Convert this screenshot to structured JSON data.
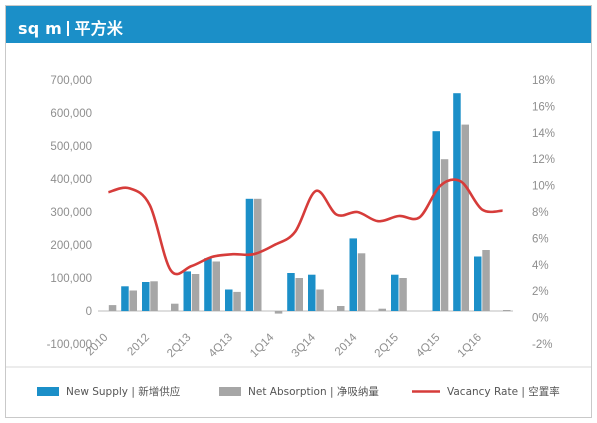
{
  "header": {
    "unit_en": "sq m",
    "unit_cn": "平方米"
  },
  "colors": {
    "header": "#1b8fc8",
    "supply": "#1b8fc8",
    "absorption": "#a6a6a6",
    "vacancy": "#d63c3a"
  },
  "legend": {
    "supply": "New Supply | 新增供应",
    "absorption": "Net Absorption | 净吸纳量",
    "vacancy": "Vacancy Rate | 空置率"
  },
  "chart_data": {
    "type": "bar",
    "categories": [
      "2010",
      "",
      "2012",
      "",
      "2Q13",
      "",
      "4Q13",
      "",
      "1Q14",
      "",
      "3Q14",
      "",
      "2014",
      "",
      "2Q15",
      "",
      "4Q15",
      "",
      "1Q16",
      ""
    ],
    "x_tick_labels": [
      "2010",
      "2012",
      "2Q13",
      "4Q13",
      "1Q14",
      "3Q14",
      "2014",
      "2Q15",
      "4Q15",
      "1Q16"
    ],
    "series": [
      {
        "name": "New Supply | 新增供应",
        "axis": "left",
        "type": "bar",
        "values": [
          0,
          75000,
          88000,
          0,
          120000,
          160000,
          65000,
          340000,
          0,
          115000,
          110000,
          0,
          220000,
          0,
          110000,
          0,
          545000,
          660000,
          165000,
          0
        ]
      },
      {
        "name": "Net Absorption | 净吸纳量",
        "axis": "left",
        "type": "bar",
        "values": [
          18000,
          62000,
          90000,
          22000,
          112000,
          150000,
          58000,
          340000,
          -8000,
          100000,
          65000,
          15000,
          175000,
          7000,
          100000,
          0,
          460000,
          565000,
          185000,
          3000
        ]
      },
      {
        "name": "Vacancy Rate | 空置率",
        "axis": "right",
        "type": "line",
        "values": [
          9.5,
          9.8,
          8.5,
          3.6,
          3.9,
          4.6,
          4.8,
          4.8,
          5.5,
          6.5,
          9.6,
          7.8,
          8.0,
          7.3,
          7.7,
          7.6,
          10.0,
          10.3,
          8.2,
          8.1
        ]
      }
    ],
    "y_left": {
      "min": -100000,
      "max": 700000,
      "step": 100000,
      "tick_labels": [
        "-100,000",
        "0",
        "100,000",
        "200,000",
        "300,000",
        "400,000",
        "500,000",
        "600,000",
        "700,000"
      ]
    },
    "y_right": {
      "min": -2,
      "max": 18,
      "step": 2,
      "tick_labels": [
        "-2%",
        "0%",
        "2%",
        "4%",
        "6%",
        "8%",
        "10%",
        "12%",
        "14%",
        "16%",
        "18%"
      ]
    },
    "xlabel": "",
    "ylabel": "",
    "grid": false,
    "legend_position": "bottom"
  }
}
